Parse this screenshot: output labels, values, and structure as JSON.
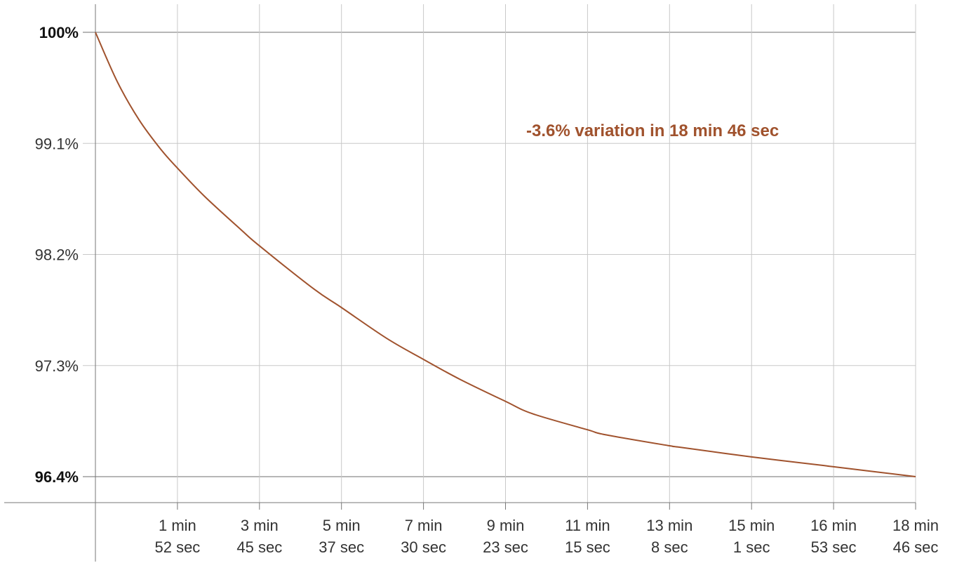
{
  "chart_data": {
    "type": "line",
    "title": "",
    "xlabel": "",
    "ylabel": "",
    "colors": {
      "series": "#a0522d",
      "grid": "#c8c8c8",
      "axis": "#777777",
      "text": "#333333"
    },
    "x_unit": "seconds",
    "x_range_seconds": [
      0,
      1126
    ],
    "ylim": [
      96.4,
      100
    ],
    "grid": true,
    "y_ticks": [
      {
        "value": 100,
        "label": "100%",
        "bold": true
      },
      {
        "value": 99.1,
        "label": "99.1%",
        "bold": false
      },
      {
        "value": 98.2,
        "label": "98.2%",
        "bold": false
      },
      {
        "value": 97.3,
        "label": "97.3%",
        "bold": false
      },
      {
        "value": 96.4,
        "label": "96.4%",
        "bold": true
      }
    ],
    "x_ticks": [
      {
        "value": 112.6,
        "line1": "1 min",
        "line2": "52 sec"
      },
      {
        "value": 225.2,
        "line1": "3 min",
        "line2": "45 sec"
      },
      {
        "value": 337.8,
        "line1": "5 min",
        "line2": "37 sec"
      },
      {
        "value": 450.4,
        "line1": "7 min",
        "line2": "30 sec"
      },
      {
        "value": 563,
        "line1": "9 min",
        "line2": "23 sec"
      },
      {
        "value": 675.6,
        "line1": "11 min",
        "line2": "15 sec"
      },
      {
        "value": 788.2,
        "line1": "13 min",
        "line2": "8 sec"
      },
      {
        "value": 900.8,
        "line1": "15 min",
        "line2": "1 sec"
      },
      {
        "value": 1013.4,
        "line1": "16 min",
        "line2": "53 sec"
      },
      {
        "value": 1126,
        "line1": "18 min",
        "line2": "46 sec"
      }
    ],
    "series": [
      {
        "x": [
          0,
          30,
          60,
          90,
          112.6,
          150,
          200,
          225.2,
          300,
          337.8,
          400,
          450.4,
          500,
          563,
          600,
          675.6,
          700,
          788.2,
          800,
          900.8,
          1000,
          1013.4,
          1126
        ],
        "y": [
          100,
          99.6,
          99.29,
          99.05,
          98.9,
          98.67,
          98.4,
          98.27,
          97.92,
          97.77,
          97.52,
          97.35,
          97.19,
          97.01,
          96.91,
          96.78,
          96.74,
          96.65,
          96.64,
          96.56,
          96.49,
          96.48,
          96.4
        ]
      }
    ],
    "annotation": {
      "text": "-3.6% variation in 18 min 46 sec"
    }
  }
}
